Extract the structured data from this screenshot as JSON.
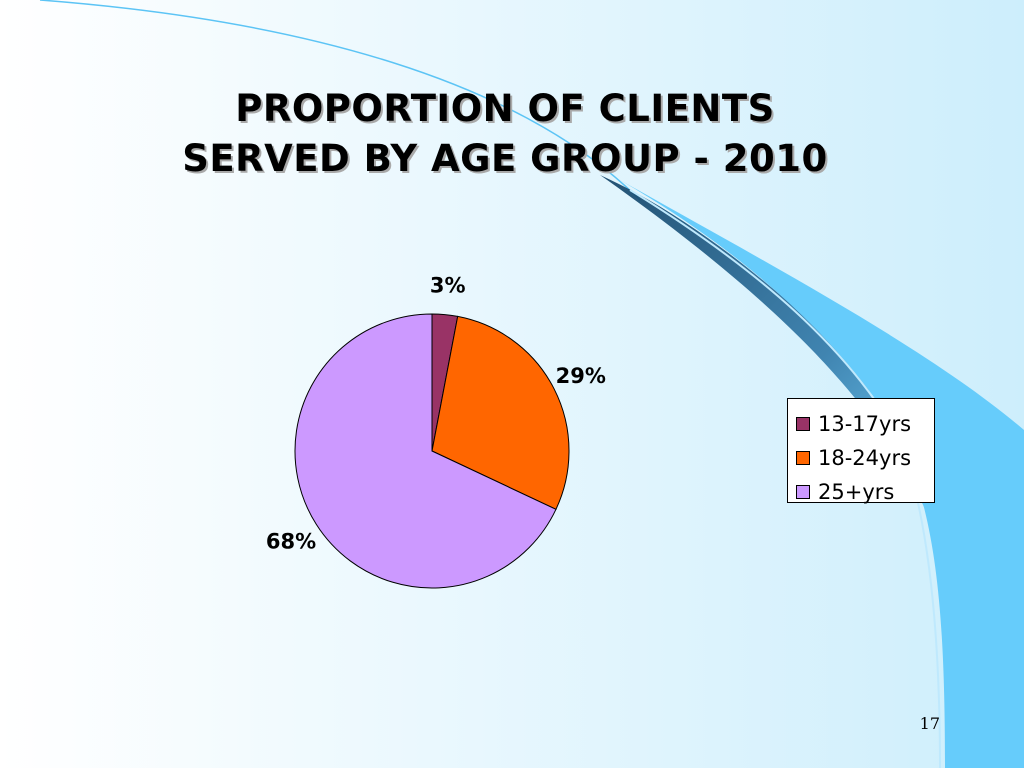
{
  "slide": {
    "title_line1": "PROPORTION OF CLIENTS",
    "title_line2": "SERVED BY AGE GROUP - 2010",
    "page_number": "17"
  },
  "colors": {
    "bg_light": "#ffffff",
    "bg_tint": "#d6f0fc",
    "wave_blue": "#66ccfb",
    "wave_dark": "#1f5f8b"
  },
  "chart_data": {
    "type": "pie",
    "title": "PROPORTION OF CLIENTS SERVED BY AGE GROUP - 2010",
    "categories": [
      "13-17yrs",
      "18-24yrs",
      "25+yrs"
    ],
    "values": [
      3,
      29,
      68
    ],
    "labels": [
      "3%",
      "29%",
      "68%"
    ],
    "colors": [
      "#993366",
      "#ff6600",
      "#cc99ff"
    ],
    "legend_position": "right"
  }
}
